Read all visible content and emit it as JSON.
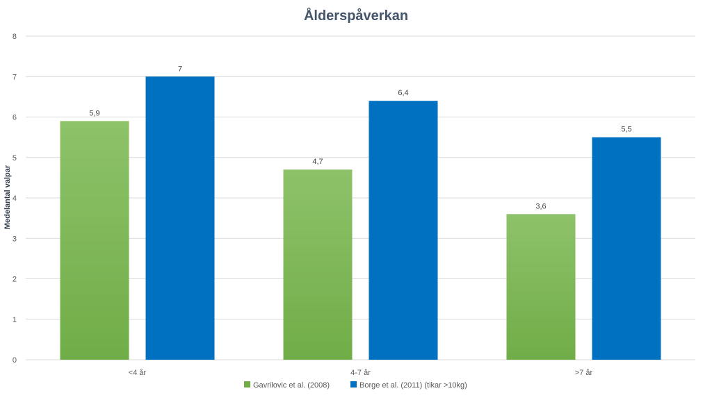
{
  "chart_data": {
    "type": "bar",
    "title": "Ålderspåverkan",
    "xlabel": "",
    "ylabel": "Medelantal valpar",
    "ylim": [
      0,
      8
    ],
    "yticks": [
      "0",
      "1",
      "2",
      "3",
      "4",
      "5",
      "6",
      "7",
      "8"
    ],
    "grid": true,
    "legend_position": "bottom",
    "categories": [
      "<4 år",
      "4-7 år",
      ">7 år"
    ],
    "series": [
      {
        "name": "Gavrilovic et al. (2008)",
        "values": [
          5.9,
          4.7,
          3.6
        ],
        "labels": [
          "5,9",
          "4,7",
          "3,6"
        ],
        "color": "#70ad47",
        "color_light": "#8ec26a"
      },
      {
        "name": "Borge et al. (2011) (tikar >10kg)",
        "values": [
          7,
          6.4,
          5.5
        ],
        "labels": [
          "7",
          "6,4",
          "5,5"
        ],
        "color": "#0070c0",
        "color_light": "#0070c0"
      }
    ]
  }
}
